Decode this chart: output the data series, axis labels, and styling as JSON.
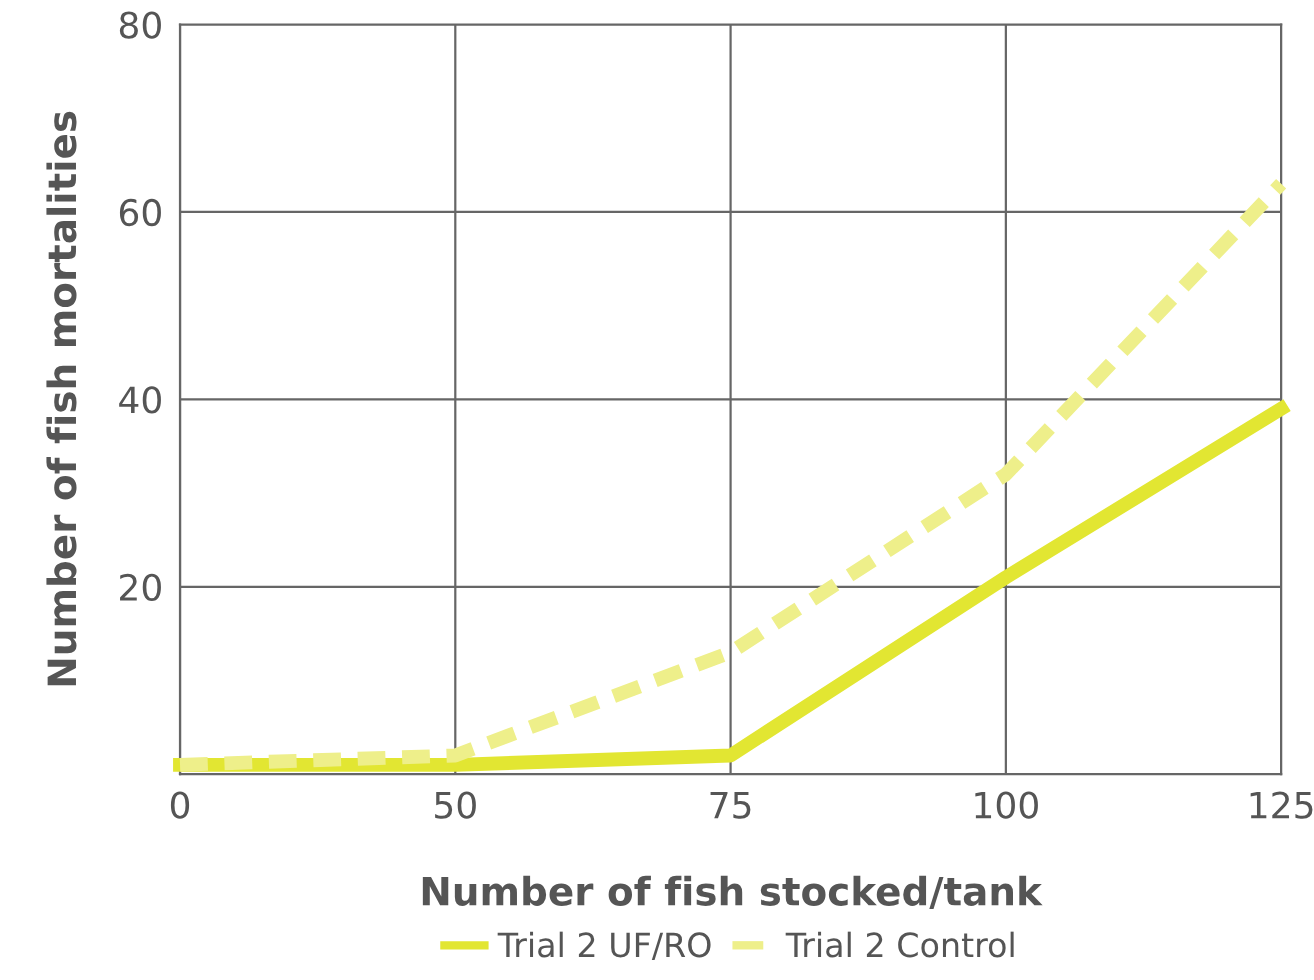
{
  "chart_data": {
    "type": "line",
    "xlabel": "Number of fish stocked/tank",
    "ylabel": "Number of fish mortalities",
    "categories": [
      "0",
      "50",
      "75",
      "100",
      "125"
    ],
    "series": [
      {
        "name": "Trial 2 UF/RO",
        "color": "#e2e632",
        "values": [
          1,
          1,
          2,
          21,
          39
        ],
        "line_style": "solid"
      },
      {
        "name": "Trial 2 Control",
        "color": "#eeef8a",
        "values": [
          1,
          2,
          13,
          32,
          63
        ],
        "line_style": "dashed"
      }
    ],
    "ylim": [
      0,
      80
    ],
    "yticks": [
      {
        "value": 0,
        "label": null
      },
      20,
      40,
      60,
      80
    ],
    "grid": true,
    "legend": "bottom",
    "marker": "none"
  }
}
